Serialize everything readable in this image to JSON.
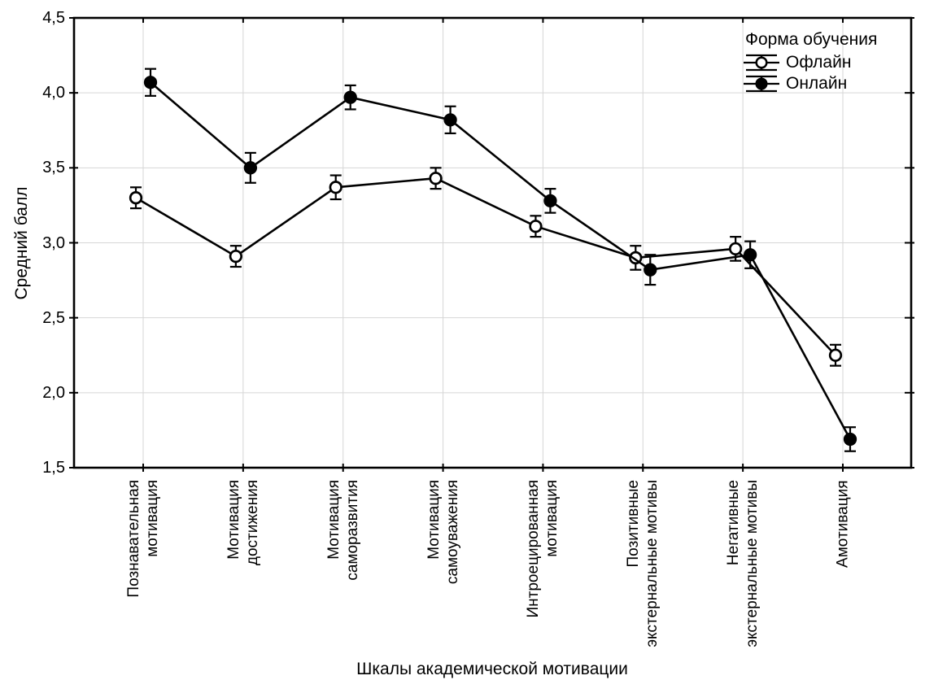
{
  "figure": {
    "background_color": "#ffffff",
    "line_color": "#000000",
    "grid_color": "#d6d6d6"
  },
  "chart_data": {
    "type": "line",
    "title": "",
    "xlabel": "Шкалы академической мотивации",
    "ylabel": "Средний балл",
    "ylim": [
      1.5,
      4.5
    ],
    "ytick_step": 0.5,
    "ytick_labels": [
      "1,5",
      "2,0",
      "2,5",
      "3,0",
      "3,5",
      "4,0",
      "4,5"
    ],
    "grid": true,
    "error_bars": true,
    "legend": {
      "title": "Форма обучения",
      "position": "top-right-inside"
    },
    "categories": [
      "Познавательная\nмотивация",
      "Мотивация\nдостижения",
      "Мотивация\nсаморазвития",
      "Мотивация\nсамоуважения",
      "Интроецированная\nмотивация",
      "Позитивные\nэкстернальные мотивы",
      "Негативные\nэкстернальные мотивы",
      "Амотивация"
    ],
    "series": [
      {
        "name": "Офлайн",
        "marker": "open-circle",
        "color": "#000000",
        "values": [
          3.3,
          2.91,
          3.37,
          3.43,
          3.11,
          2.9,
          2.96,
          2.25
        ],
        "errors": [
          0.07,
          0.07,
          0.08,
          0.07,
          0.07,
          0.08,
          0.08,
          0.07
        ]
      },
      {
        "name": "Онлайн",
        "marker": "filled-circle",
        "color": "#000000",
        "values": [
          4.07,
          3.5,
          3.97,
          3.82,
          3.28,
          2.82,
          2.92,
          1.69
        ],
        "errors": [
          0.09,
          0.1,
          0.08,
          0.09,
          0.08,
          0.1,
          0.09,
          0.08
        ]
      }
    ]
  }
}
